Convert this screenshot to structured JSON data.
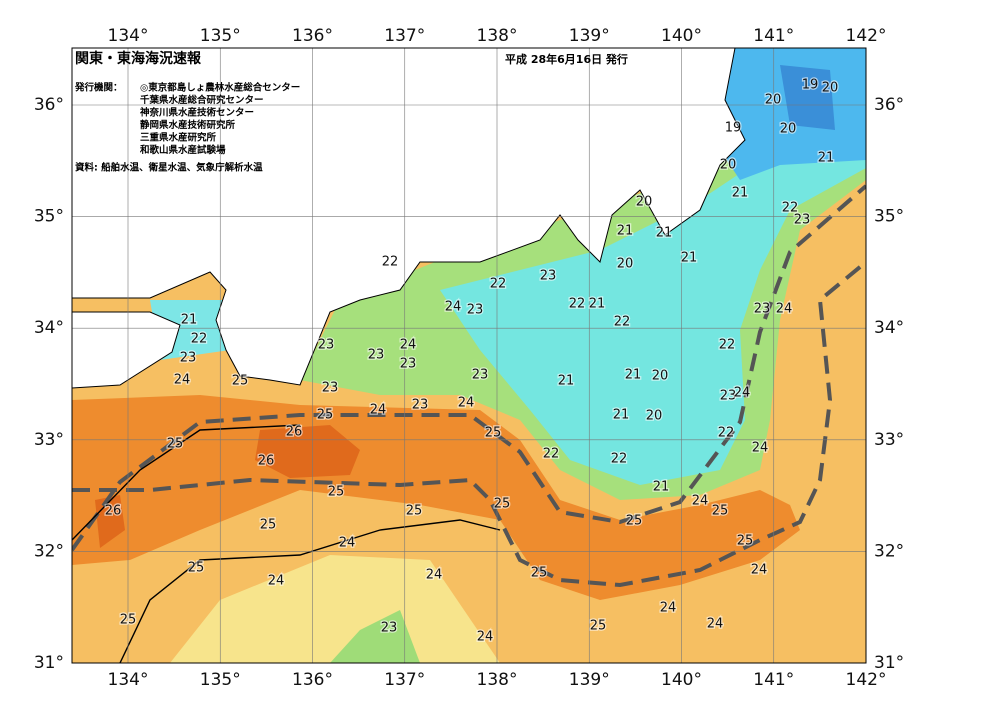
{
  "header": {
    "title": "関東・東海海況速報",
    "date": "平成 28年6月16日 発行",
    "issuer_label": "発行機関：",
    "issuers": [
      "◎東京都島しょ農林水産総合センター",
      "千葉県水産総合研究センター",
      "神奈川県水産技術センター",
      "静岡県水産技術研究所",
      "三重県水産研究所",
      "和歌山県水産試験場"
    ],
    "source": "資料: 船舶水温、衛星水温、気象庁解析水温"
  },
  "map": {
    "lon_ticks": [
      {
        "value": 134,
        "label": "134°"
      },
      {
        "value": 135,
        "label": "135°"
      },
      {
        "value": 136,
        "label": "136°"
      },
      {
        "value": 137,
        "label": "137°"
      },
      {
        "value": 138,
        "label": "138°"
      },
      {
        "value": 139,
        "label": "139°"
      },
      {
        "value": 140,
        "label": "140°"
      },
      {
        "value": 141,
        "label": "141°"
      },
      {
        "value": 142,
        "label": "142°"
      }
    ],
    "lat_ticks": [
      {
        "value": 36,
        "label": "36°"
      },
      {
        "value": 35,
        "label": "35°"
      },
      {
        "value": 34,
        "label": "34°"
      },
      {
        "value": 33,
        "label": "33°"
      },
      {
        "value": 32,
        "label": "32°"
      },
      {
        "value": 31,
        "label": "31°"
      }
    ],
    "contour_labels": [
      "19",
      "20",
      "20",
      "19",
      "20",
      "21",
      "20",
      "21",
      "20",
      "22",
      "23",
      "21",
      "21",
      "22",
      "21",
      "20",
      "23",
      "22",
      "22",
      "21",
      "24",
      "23",
      "23",
      "24",
      "21",
      "22",
      "22",
      "23",
      "24",
      "22",
      "23",
      "23",
      "23",
      "21",
      "21",
      "20",
      "23",
      "24",
      "25",
      "23",
      "23",
      "24",
      "24",
      "23",
      "24",
      "21",
      "20",
      "25",
      "22",
      "26",
      "25",
      "25",
      "24",
      "22",
      "26",
      "22",
      "21",
      "25",
      "24",
      "26",
      "25",
      "25",
      "25",
      "25",
      "25",
      "24",
      "25",
      "25",
      "25",
      "24",
      "24",
      "24",
      "24",
      "25",
      "25",
      "24",
      "23",
      "24"
    ]
  }
}
